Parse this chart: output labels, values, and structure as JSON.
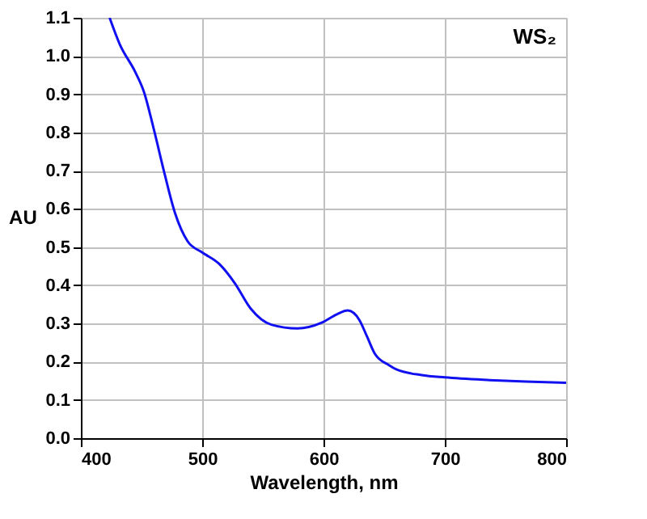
{
  "chart_data": {
    "type": "line",
    "xlabel": "Wavelength, nm",
    "ylabel": "AU",
    "annotations": [
      "WS₂"
    ],
    "series": [
      {
        "color": "#1010f0",
        "x": [
          423.7,
          432,
          445,
          452,
          460,
          469,
          477.6,
          488,
          500,
          514,
          527,
          540,
          557,
          578.5,
          598.5,
          611,
          620,
          629.6,
          636,
          642.5,
          654,
          660,
          681,
          700,
          737,
          767,
          800
        ],
        "values": [
          1.1,
          1.031,
          0.957,
          0.906,
          0.81,
          0.692,
          0.589,
          0.515,
          0.486,
          0.456,
          0.405,
          0.339,
          0.297,
          0.287,
          0.302,
          0.324,
          0.334,
          0.309,
          0.265,
          0.22,
          0.191,
          0.18,
          0.165,
          0.159,
          0.152,
          0.148,
          0.145
        ]
      }
    ],
    "xlim": [
      400,
      800
    ],
    "xticks": [
      400,
      500,
      600,
      700,
      800
    ],
    "ylim": [
      0,
      1.1
    ],
    "yticks": [
      {
        "value": 0,
        "label": "0.0"
      },
      0.1,
      0.2,
      0.3,
      0.4,
      0.5,
      0.6,
      0.7,
      0.8,
      0.9,
      {
        "value": 1,
        "label": "1.0"
      },
      1.1
    ],
    "grid": true,
    "line_style": "solid",
    "marker": "none"
  }
}
